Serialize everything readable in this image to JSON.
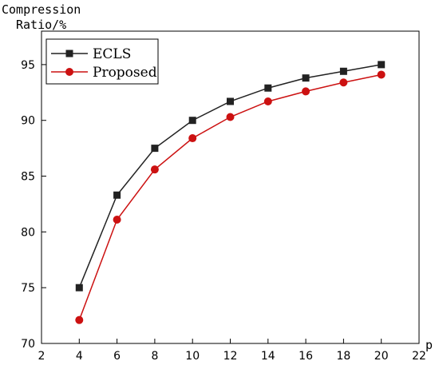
{
  "chart_data": {
    "type": "line",
    "ylabel_line1": "Compression",
    "ylabel_line2": "Ratio/%",
    "xlabel": "p",
    "xlim": [
      2,
      22
    ],
    "ylim": [
      70,
      98
    ],
    "x_ticks": [
      2,
      4,
      6,
      8,
      10,
      12,
      14,
      16,
      18,
      20,
      22
    ],
    "y_ticks": [
      70,
      75,
      80,
      85,
      90,
      95
    ],
    "legend_position": "top-left",
    "grid": false,
    "x": [
      4,
      6,
      8,
      10,
      12,
      14,
      16,
      18,
      20
    ],
    "series": [
      {
        "name": "ECLS",
        "color": "#222222",
        "marker": "square",
        "values": [
          75.0,
          83.3,
          87.5,
          90.0,
          91.7,
          92.9,
          93.8,
          94.4,
          95.0
        ]
      },
      {
        "name": "Proposed",
        "color": "#cc1111",
        "marker": "circle",
        "values": [
          72.1,
          81.1,
          85.6,
          88.4,
          90.3,
          91.7,
          92.6,
          93.4,
          94.1
        ]
      }
    ]
  }
}
